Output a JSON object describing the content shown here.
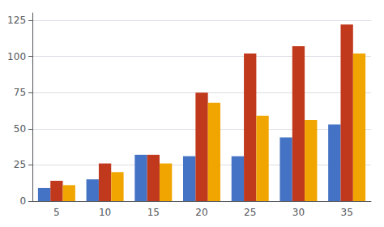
{
  "chart_data": {
    "type": "bar",
    "categories": [
      "5",
      "10",
      "15",
      "20",
      "25",
      "30",
      "35"
    ],
    "series": [
      {
        "color": "#4472C4",
        "values": [
          9,
          15,
          32,
          31,
          31,
          44,
          53
        ]
      },
      {
        "color": "#C1391D",
        "values": [
          14,
          26,
          32,
          75,
          102,
          107,
          122
        ]
      },
      {
        "color": "#F0A500",
        "values": [
          11,
          20,
          26,
          68,
          59,
          56,
          102
        ]
      }
    ],
    "ylim": [
      0,
      130
    ],
    "yticks": [
      0,
      25,
      50,
      75,
      100,
      125
    ],
    "grid": true
  }
}
